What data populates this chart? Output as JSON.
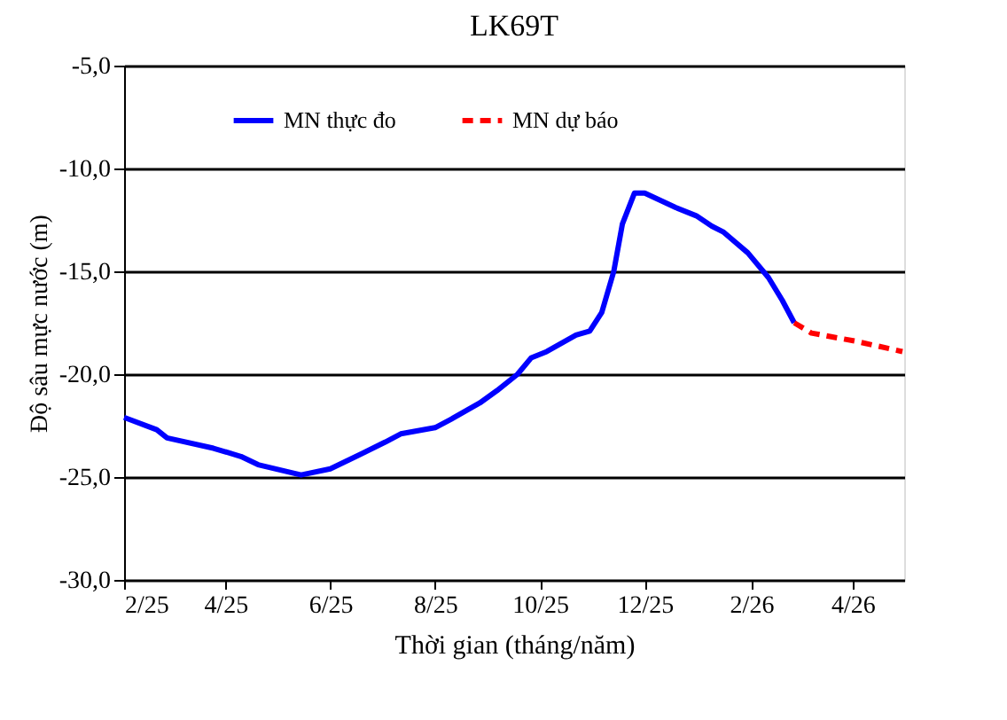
{
  "chart_data": {
    "type": "line",
    "title": "LK69T",
    "xlabel": "Thời gian  (tháng/năm)",
    "ylabel": "Độ sâu mực nước (m)",
    "series": [
      {
        "name": "MN thực đo",
        "color": "#0000ff",
        "line_style": "solid",
        "x": [
          "2025-02-01",
          "2025-02-20",
          "2025-02-26",
          "2025-03-25",
          "2025-04-10",
          "2025-04-20",
          "2025-05-15",
          "2025-06-01",
          "2025-06-16",
          "2025-07-03",
          "2025-07-12",
          "2025-08-01",
          "2025-08-10",
          "2025-08-27",
          "2025-09-06",
          "2025-09-18",
          "2025-09-26",
          "2025-10-05",
          "2025-10-22",
          "2025-10-30",
          "2025-11-06",
          "2025-11-13",
          "2025-11-18",
          "2025-11-25",
          "2025-12-01",
          "2025-12-19",
          "2025-12-31",
          "2026-01-09",
          "2026-01-16",
          "2026-01-30",
          "2026-02-11",
          "2026-02-19",
          "2026-02-26"
        ],
        "values": [
          -22.1,
          -22.7,
          -23.1,
          -23.6,
          -24.0,
          -24.4,
          -24.9,
          -24.6,
          -24.0,
          -23.3,
          -22.9,
          -22.6,
          -22.2,
          -21.4,
          -20.8,
          -20.0,
          -19.2,
          -18.9,
          -18.1,
          -17.9,
          -17.0,
          -15.0,
          -12.7,
          -11.2,
          -11.2,
          -11.9,
          -12.3,
          -12.8,
          -13.1,
          -14.1,
          -15.3,
          -16.4,
          -17.5
        ]
      },
      {
        "name": "MN dự báo",
        "color": "#ff0000",
        "line_style": "dashed",
        "x": [
          "2026-02-26",
          "2026-03-08",
          "2026-04-03",
          "2026-04-30"
        ],
        "values": [
          -17.5,
          -18.0,
          -18.4,
          -18.9
        ]
      }
    ],
    "xlim": [
      "2025-02-01",
      "2026-05-01"
    ],
    "xticks": [
      {
        "value": "2025-02-01",
        "label": "2/25"
      },
      {
        "value": "2025-04-01",
        "label": "4/25"
      },
      {
        "value": "2025-06-01",
        "label": "6/25"
      },
      {
        "value": "2025-08-01",
        "label": "8/25"
      },
      {
        "value": "2025-10-01",
        "label": "10/25"
      },
      {
        "value": "2025-12-01",
        "label": "12/25"
      },
      {
        "value": "2026-02-01",
        "label": "2/26"
      },
      {
        "value": "2026-04-01",
        "label": "4/26"
      }
    ],
    "ylim": [
      -30,
      -5
    ],
    "yticks": [
      {
        "value": -30,
        "label": "-30,0"
      },
      {
        "value": -25,
        "label": "-25,0"
      },
      {
        "value": -20,
        "label": "-20,0"
      },
      {
        "value": -15,
        "label": "-15,0"
      },
      {
        "value": -10,
        "label": "-10,0"
      },
      {
        "value": -5,
        "label": "-5,0"
      }
    ],
    "grid": "y",
    "legend": "top",
    "marker": "none"
  }
}
